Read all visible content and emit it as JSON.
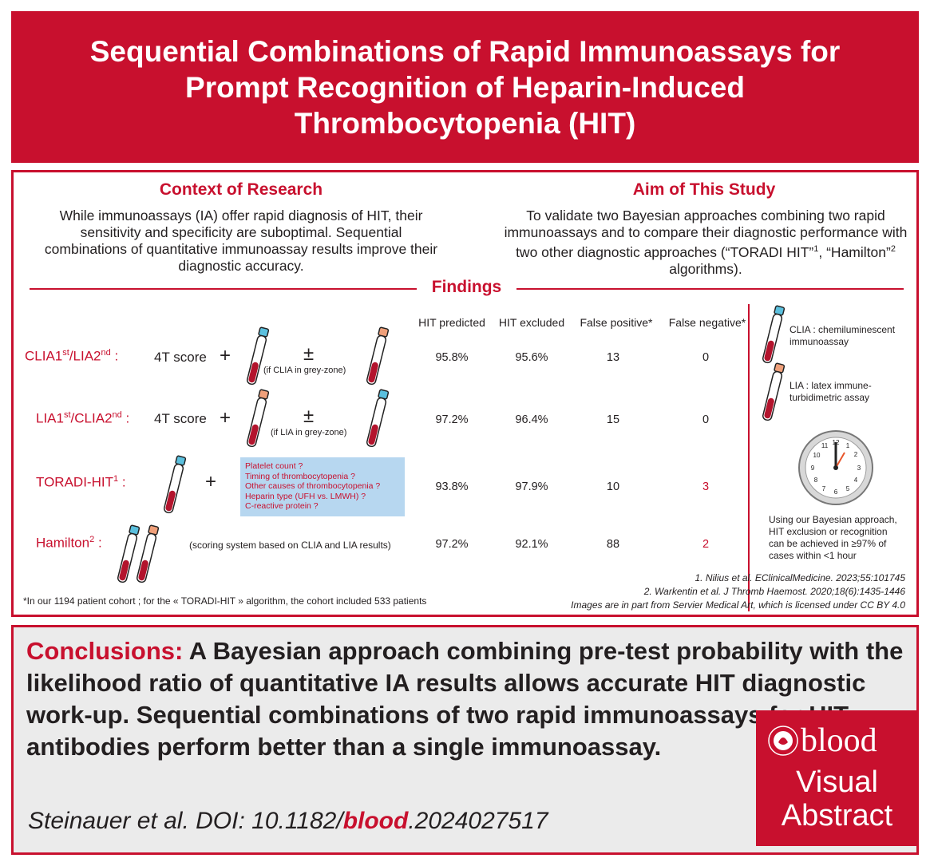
{
  "title": "Sequential Combinations of Rapid Immunoassays for Prompt Recognition of Heparin-Induced Thrombocytopenia (HIT)",
  "context": {
    "heading": "Context of Research",
    "text": "While immunoassays (IA) offer rapid diagnosis of HIT, their sensitivity and specificity are suboptimal. Sequential combinations of quantitative immunoassay results improve their diagnostic accuracy."
  },
  "aim": {
    "heading": "Aim of This Study",
    "text_main": "To validate two Bayesian approaches combining two rapid immunoassays and to compare their diagnostic performance with two other diagnostic approaches",
    "text_tail_1": "(“TORADI HIT”",
    "sup_1": "1",
    "text_tail_2": ", “Hamilton”",
    "sup_2": "2",
    "text_tail_3": " algorithms)."
  },
  "findings": {
    "heading": "Findings",
    "columns": [
      "HIT predicted",
      "HIT excluded",
      "False positive*",
      "False negative*"
    ],
    "rows": [
      {
        "label": "CLIA1",
        "sup1": "st",
        "label2": "/LIA2",
        "sup2": "nd",
        "suffix": " :",
        "score": "4T score",
        "plus": "+",
        "pm": "±",
        "note": "(if CLIA in grey-zone)",
        "values": [
          "95.8%",
          "95.6%",
          "13",
          "0"
        ]
      },
      {
        "label": "LIA1",
        "sup1": "st",
        "label2": "/CLIA2",
        "sup2": "nd",
        "suffix": " :",
        "score": "4T score",
        "plus": "+",
        "pm": "±",
        "note": "(if LIA in grey-zone)",
        "values": [
          "97.2%",
          "96.4%",
          "15",
          "0"
        ]
      },
      {
        "label": "TORADI-HIT",
        "sup1": "1",
        "suffix": " :",
        "plus": "+",
        "values": [
          "93.8%",
          "97.9%",
          "10",
          "3"
        ]
      },
      {
        "label": "Hamilton",
        "sup1": "2",
        "suffix": " :",
        "note": "(scoring system based on CLIA and LIA results)",
        "values": [
          "97.2%",
          "92.1%",
          "88",
          "2"
        ]
      }
    ],
    "toradi_box": [
      "Platelet count ?",
      "Timing of thrombocytopenia ?",
      "Other causes of thrombocytopenia ?",
      "Heparin type (UFH vs. LMWH) ?",
      "C-reactive protein ?"
    ]
  },
  "legend": {
    "clia": "CLIA : chemiluminescent immunoassay",
    "lia": "LIA : latex immune-turbidimetric assay",
    "clock_text": "Using our Bayesian approach, HIT exclusion or recognition can be achieved in ≥97% of cases within <1 hour",
    "clock_numbers": [
      "12",
      "1",
      "2",
      "3",
      "4",
      "5",
      "6",
      "7",
      "8",
      "9",
      "10",
      "11"
    ]
  },
  "references": [
    "1. Nilius et al. EClinicalMedicine. 2023;55:101745",
    "2. Warkentin et al. J Thromb Haemost. 2020;18(6):1435-1446",
    "Images are in part from Servier Medical Art, which is licensed under CC BY 4.0"
  ],
  "footnote": "*In our 1194 patient cohort ; for the « TORADI-HIT » algorithm, the cohort included 533 patients",
  "conclusion": {
    "label": "Conclusions:",
    "text": " A Bayesian approach combining pre-test probability with the likelihood ratio of quantitative IA results allows accurate HIT diagnostic work-up. Sequential combinations of two rapid immunoassays for HIT-antibodies perform better than a single immunoassay."
  },
  "citation": {
    "prefix": "Steinauer et al. DOI: 10.1182/",
    "journal": "blood",
    "suffix": ".2024027517"
  },
  "logo": {
    "brand": "blood",
    "line1": "Visual",
    "line2": "Abstract"
  },
  "colors": {
    "accent": "#c8102e",
    "clia_cap": "#5bc0de",
    "lia_cap": "#f0a07a",
    "blood": "#b3142d"
  }
}
